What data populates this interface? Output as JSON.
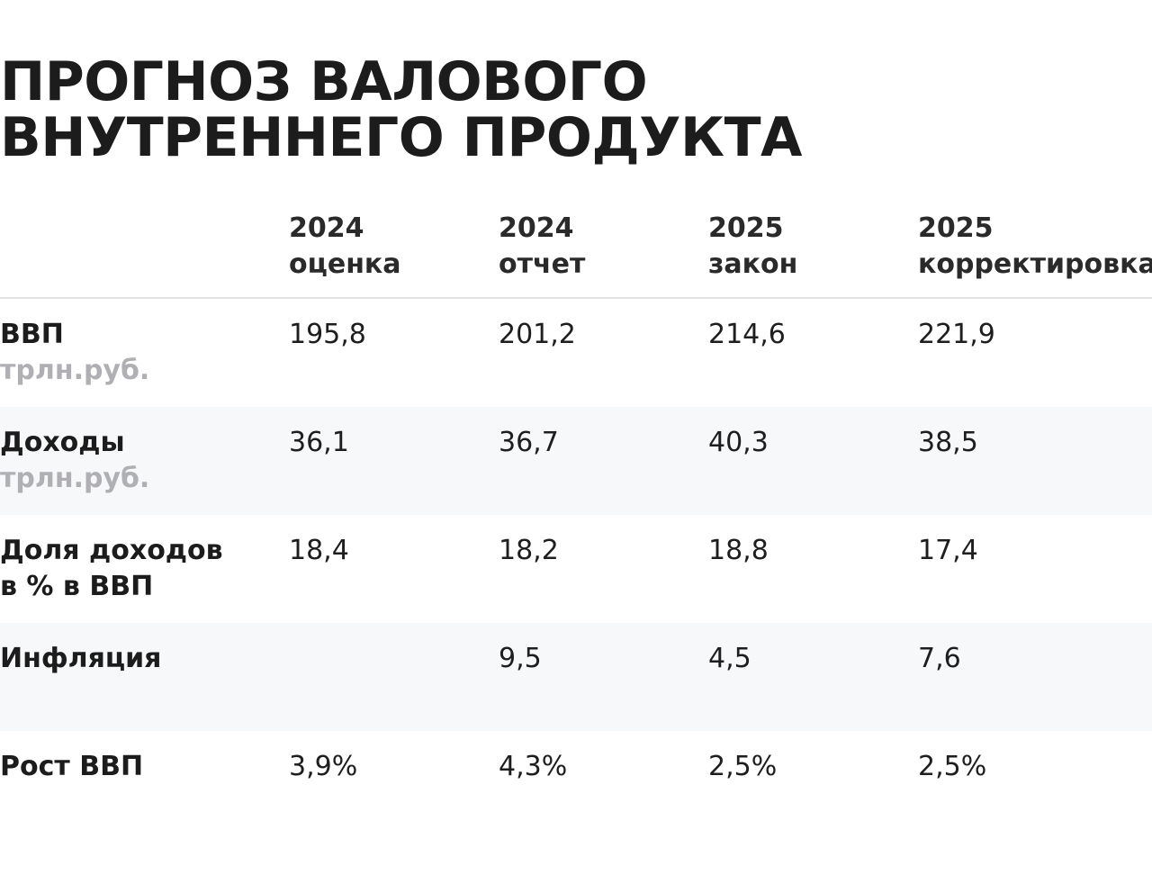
{
  "title": {
    "line1": "ПРОГНОЗ ВАЛОВОГО",
    "line2": "ВНУТРЕННЕГО ПРОДУКТА"
  },
  "columns": [
    {
      "year": "2024",
      "label": "оценка"
    },
    {
      "year": "2024",
      "label": "отчет"
    },
    {
      "year": "2025",
      "label": "закон"
    },
    {
      "year": "2025",
      "label": "корректировка"
    }
  ],
  "rows": [
    {
      "label1": "ВВП",
      "label2": "",
      "unit": "трлн.руб.",
      "values": [
        "195,8",
        "201,2",
        "214,6",
        "221,9"
      ]
    },
    {
      "label1": "Доходы",
      "label2": "",
      "unit": "трлн.руб.",
      "values": [
        "36,1",
        "36,7",
        "40,3",
        "38,5"
      ]
    },
    {
      "label1": "Доля доходов",
      "label2": "в % в ВВП",
      "unit": "",
      "values": [
        "18,4",
        "18,2",
        "18,8",
        "17,4"
      ]
    },
    {
      "label1": "Инфляция",
      "label2": "",
      "unit": "",
      "values": [
        "",
        "9,5",
        "4,5",
        "7,6"
      ]
    },
    {
      "label1": "Рост ВВП",
      "label2": "",
      "unit": "",
      "values": [
        "3,9%",
        "4,3%",
        "2,5%",
        "2,5%"
      ]
    }
  ]
}
